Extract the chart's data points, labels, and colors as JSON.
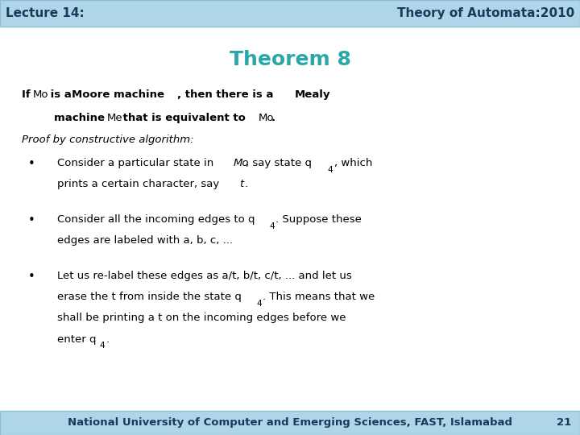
{
  "header_bg": "#aed6e8",
  "header_text_left": "Lecture 14:",
  "header_text_right": "Theory of Automata:2010",
  "header_text_color": "#1a3a5c",
  "header_font_size": 11,
  "title": "Theorem 8",
  "title_color": "#2aa8a8",
  "title_font_size": 18,
  "body_bg": "#ffffff",
  "footer_bg": "#aed6e8",
  "footer_text": "National University of Computer and Emerging Sciences, FAST, Islamabad",
  "footer_number": "21",
  "footer_text_color": "#1a3a5c",
  "footer_font_size": 9.5
}
